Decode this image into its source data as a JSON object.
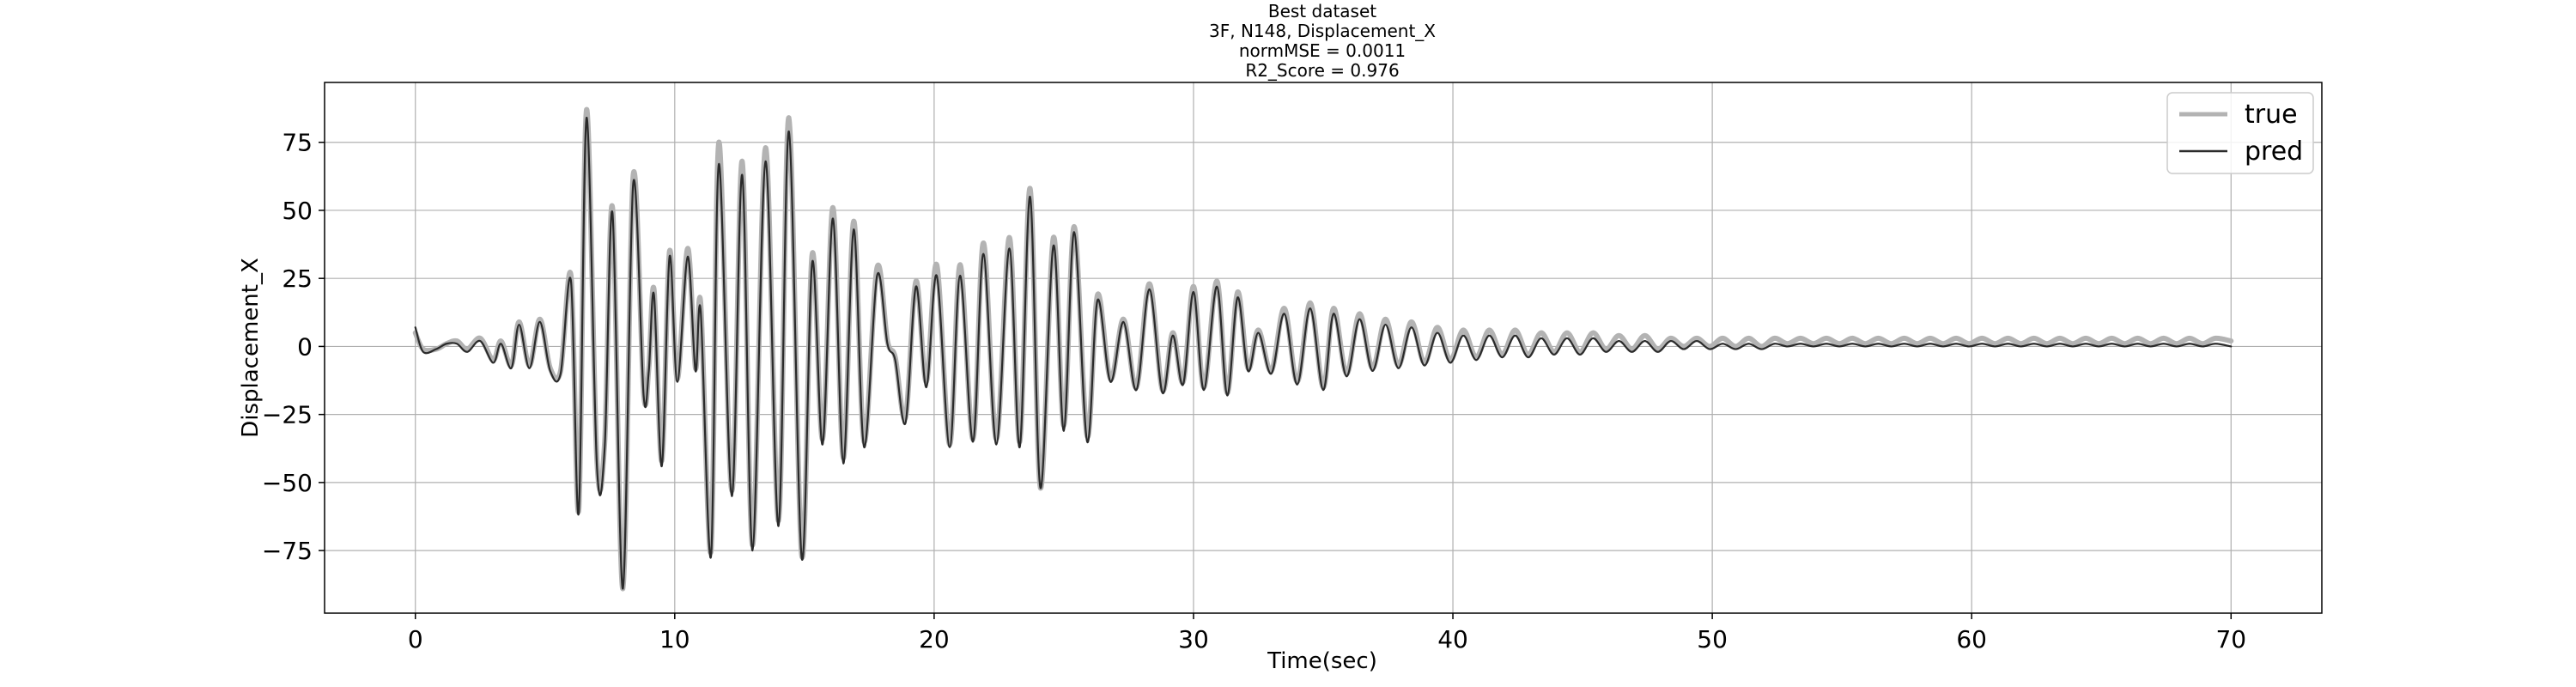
{
  "chart_data": {
    "type": "line",
    "title_lines": [
      "Best dataset",
      "3F, N148, Displacement_X",
      "normMSE = 0.0011",
      "R2_Score = 0.976"
    ],
    "xlabel": "Time(sec)",
    "ylabel": "Displacement_X",
    "xlim": [
      -3.5,
      73.5
    ],
    "ylim": [
      -98,
      97
    ],
    "xticks": [
      0,
      10,
      20,
      30,
      40,
      50,
      60,
      70
    ],
    "yticks": [
      -75,
      -50,
      -25,
      0,
      25,
      50,
      75
    ],
    "grid": true,
    "legend_position": "top-right",
    "series": [
      {
        "name": "true",
        "color": "#b3b3b3",
        "points": [
          [
            0.0,
            5
          ],
          [
            0.3,
            -1
          ],
          [
            0.8,
            -1
          ],
          [
            1.2,
            1
          ],
          [
            1.6,
            2
          ],
          [
            2.0,
            -1
          ],
          [
            2.5,
            3
          ],
          [
            3.0,
            -5
          ],
          [
            3.3,
            2
          ],
          [
            3.7,
            -7
          ],
          [
            4.0,
            9
          ],
          [
            4.4,
            -7
          ],
          [
            4.8,
            10
          ],
          [
            5.2,
            -8
          ],
          [
            5.6,
            -9
          ],
          [
            6.0,
            26
          ],
          [
            6.3,
            -60
          ],
          [
            6.6,
            87
          ],
          [
            7.0,
            -42
          ],
          [
            7.3,
            -35
          ],
          [
            7.6,
            51
          ],
          [
            8.0,
            -89
          ],
          [
            8.4,
            63
          ],
          [
            8.8,
            -17
          ],
          [
            9.0,
            -8
          ],
          [
            9.2,
            21
          ],
          [
            9.5,
            -42
          ],
          [
            9.8,
            35
          ],
          [
            10.1,
            -12
          ],
          [
            10.5,
            36
          ],
          [
            10.8,
            -8
          ],
          [
            11.0,
            16
          ],
          [
            11.4,
            -75
          ],
          [
            11.7,
            75
          ],
          [
            12.2,
            -53
          ],
          [
            12.6,
            68
          ],
          [
            13.0,
            -73
          ],
          [
            13.5,
            73
          ],
          [
            14.0,
            -64
          ],
          [
            14.4,
            84
          ],
          [
            14.9,
            -77
          ],
          [
            15.3,
            34
          ],
          [
            15.7,
            -34
          ],
          [
            16.1,
            51
          ],
          [
            16.5,
            -41
          ],
          [
            16.9,
            46
          ],
          [
            17.3,
            -35
          ],
          [
            17.8,
            29
          ],
          [
            18.2,
            2
          ],
          [
            18.5,
            -4
          ],
          [
            18.9,
            -26
          ],
          [
            19.3,
            24
          ],
          [
            19.7,
            -13
          ],
          [
            20.1,
            30
          ],
          [
            20.6,
            -36
          ],
          [
            21.0,
            30
          ],
          [
            21.5,
            -34
          ],
          [
            21.9,
            38
          ],
          [
            22.4,
            -34
          ],
          [
            22.9,
            40
          ],
          [
            23.3,
            -35
          ],
          [
            23.7,
            58
          ],
          [
            24.1,
            -52
          ],
          [
            24.6,
            40
          ],
          [
            25.0,
            -29
          ],
          [
            25.4,
            44
          ],
          [
            25.9,
            -33
          ],
          [
            26.3,
            19
          ],
          [
            26.8,
            -12
          ],
          [
            27.3,
            10
          ],
          [
            27.8,
            -15
          ],
          [
            28.3,
            23
          ],
          [
            28.8,
            -16
          ],
          [
            29.2,
            5
          ],
          [
            29.6,
            -13
          ],
          [
            30.0,
            22
          ],
          [
            30.4,
            -15
          ],
          [
            30.9,
            24
          ],
          [
            31.3,
            -17
          ],
          [
            31.7,
            20
          ],
          [
            32.1,
            -8
          ],
          [
            32.5,
            6
          ],
          [
            33.0,
            -9
          ],
          [
            33.5,
            14
          ],
          [
            34.0,
            -13
          ],
          [
            34.5,
            16
          ],
          [
            35.0,
            -15
          ],
          [
            35.4,
            14
          ],
          [
            35.9,
            -10
          ],
          [
            36.4,
            12
          ],
          [
            36.9,
            -8
          ],
          [
            37.4,
            10
          ],
          [
            37.9,
            -7
          ],
          [
            38.4,
            9
          ],
          [
            38.9,
            -6
          ],
          [
            39.4,
            7
          ],
          [
            39.9,
            -5
          ],
          [
            40.4,
            6
          ],
          [
            40.9,
            -4
          ],
          [
            41.4,
            6
          ],
          [
            41.9,
            -3
          ],
          [
            42.4,
            6
          ],
          [
            42.9,
            -3
          ],
          [
            43.4,
            5
          ],
          [
            43.9,
            -2
          ],
          [
            44.4,
            5
          ],
          [
            44.9,
            -2
          ],
          [
            45.4,
            5
          ],
          [
            45.9,
            -1
          ],
          [
            46.4,
            4
          ],
          [
            46.9,
            -1
          ],
          [
            47.4,
            4
          ],
          [
            47.9,
            -1
          ],
          [
            48.4,
            3
          ],
          [
            48.9,
            0
          ],
          [
            49.4,
            3
          ],
          [
            49.9,
            0
          ],
          [
            50.4,
            3
          ],
          [
            50.9,
            0
          ],
          [
            51.4,
            3
          ],
          [
            51.9,
            0
          ],
          [
            52.4,
            3
          ],
          [
            52.9,
            1
          ],
          [
            53.4,
            3
          ],
          [
            53.9,
            1
          ],
          [
            54.4,
            3
          ],
          [
            54.9,
            1
          ],
          [
            55.4,
            3
          ],
          [
            55.9,
            1
          ],
          [
            56.4,
            3
          ],
          [
            56.9,
            1
          ],
          [
            57.4,
            3
          ],
          [
            57.9,
            1
          ],
          [
            58.4,
            3
          ],
          [
            58.9,
            1
          ],
          [
            59.4,
            3
          ],
          [
            59.9,
            1
          ],
          [
            60.4,
            3
          ],
          [
            60.9,
            1
          ],
          [
            61.4,
            3
          ],
          [
            61.9,
            1
          ],
          [
            62.4,
            3
          ],
          [
            62.9,
            1
          ],
          [
            63.4,
            3
          ],
          [
            63.9,
            1
          ],
          [
            64.4,
            3
          ],
          [
            64.9,
            1
          ],
          [
            65.4,
            3
          ],
          [
            65.9,
            1
          ],
          [
            66.4,
            3
          ],
          [
            66.9,
            1
          ],
          [
            67.4,
            3
          ],
          [
            67.9,
            1
          ],
          [
            68.4,
            3
          ],
          [
            68.9,
            1
          ],
          [
            69.4,
            3
          ],
          [
            70.0,
            2
          ]
        ]
      },
      {
        "name": "pred",
        "color": "#2b2b2b",
        "points": [
          [
            0.0,
            7
          ],
          [
            0.3,
            -2
          ],
          [
            0.8,
            -1
          ],
          [
            1.2,
            1
          ],
          [
            1.6,
            1
          ],
          [
            2.0,
            -2
          ],
          [
            2.5,
            2
          ],
          [
            3.0,
            -6
          ],
          [
            3.3,
            1
          ],
          [
            3.7,
            -8
          ],
          [
            4.0,
            8
          ],
          [
            4.4,
            -8
          ],
          [
            4.8,
            9
          ],
          [
            5.2,
            -9
          ],
          [
            5.6,
            -10
          ],
          [
            6.0,
            24
          ],
          [
            6.3,
            -61
          ],
          [
            6.6,
            84
          ],
          [
            7.0,
            -44
          ],
          [
            7.3,
            -37
          ],
          [
            7.6,
            49
          ],
          [
            8.0,
            -89
          ],
          [
            8.4,
            60
          ],
          [
            8.8,
            -18
          ],
          [
            9.0,
            -9
          ],
          [
            9.2,
            19
          ],
          [
            9.5,
            -44
          ],
          [
            9.8,
            33
          ],
          [
            10.1,
            -13
          ],
          [
            10.5,
            33
          ],
          [
            10.8,
            -9
          ],
          [
            11.0,
            13
          ],
          [
            11.4,
            -77
          ],
          [
            11.7,
            67
          ],
          [
            12.2,
            -55
          ],
          [
            12.6,
            63
          ],
          [
            13.0,
            -75
          ],
          [
            13.5,
            68
          ],
          [
            14.0,
            -66
          ],
          [
            14.4,
            79
          ],
          [
            14.9,
            -78
          ],
          [
            15.3,
            31
          ],
          [
            15.7,
            -36
          ],
          [
            16.1,
            47
          ],
          [
            16.5,
            -43
          ],
          [
            16.9,
            43
          ],
          [
            17.3,
            -37
          ],
          [
            17.8,
            26
          ],
          [
            18.2,
            1
          ],
          [
            18.5,
            -5
          ],
          [
            18.9,
            -28
          ],
          [
            19.3,
            22
          ],
          [
            19.7,
            -15
          ],
          [
            20.1,
            26
          ],
          [
            20.6,
            -37
          ],
          [
            21.0,
            26
          ],
          [
            21.5,
            -35
          ],
          [
            21.9,
            34
          ],
          [
            22.4,
            -36
          ],
          [
            22.9,
            36
          ],
          [
            23.3,
            -37
          ],
          [
            23.7,
            55
          ],
          [
            24.1,
            -52
          ],
          [
            24.6,
            37
          ],
          [
            25.0,
            -31
          ],
          [
            25.4,
            42
          ],
          [
            25.9,
            -35
          ],
          [
            26.3,
            17
          ],
          [
            26.8,
            -13
          ],
          [
            27.3,
            9
          ],
          [
            27.8,
            -16
          ],
          [
            28.3,
            21
          ],
          [
            28.8,
            -17
          ],
          [
            29.2,
            4
          ],
          [
            29.6,
            -14
          ],
          [
            30.0,
            20
          ],
          [
            30.4,
            -16
          ],
          [
            30.9,
            22
          ],
          [
            31.3,
            -18
          ],
          [
            31.7,
            18
          ],
          [
            32.1,
            -9
          ],
          [
            32.5,
            5
          ],
          [
            33.0,
            -10
          ],
          [
            33.5,
            12
          ],
          [
            34.0,
            -14
          ],
          [
            34.5,
            14
          ],
          [
            35.0,
            -16
          ],
          [
            35.4,
            12
          ],
          [
            35.9,
            -11
          ],
          [
            36.4,
            10
          ],
          [
            36.9,
            -9
          ],
          [
            37.4,
            8
          ],
          [
            37.9,
            -8
          ],
          [
            38.4,
            7
          ],
          [
            38.9,
            -7
          ],
          [
            39.4,
            5
          ],
          [
            39.9,
            -6
          ],
          [
            40.4,
            4
          ],
          [
            40.9,
            -5
          ],
          [
            41.4,
            4
          ],
          [
            41.9,
            -4
          ],
          [
            42.4,
            4
          ],
          [
            42.9,
            -4
          ],
          [
            43.4,
            3
          ],
          [
            43.9,
            -3
          ],
          [
            44.4,
            3
          ],
          [
            44.9,
            -3
          ],
          [
            45.4,
            3
          ],
          [
            45.9,
            -2
          ],
          [
            46.4,
            2
          ],
          [
            46.9,
            -2
          ],
          [
            47.4,
            2
          ],
          [
            47.9,
            -2
          ],
          [
            48.4,
            2
          ],
          [
            48.9,
            -1
          ],
          [
            49.4,
            2
          ],
          [
            49.9,
            -1
          ],
          [
            50.4,
            1
          ],
          [
            50.9,
            -1
          ],
          [
            51.4,
            1
          ],
          [
            51.9,
            -1
          ],
          [
            52.4,
            1
          ],
          [
            52.9,
            0
          ],
          [
            53.4,
            1
          ],
          [
            53.9,
            0
          ],
          [
            54.4,
            1
          ],
          [
            54.9,
            0
          ],
          [
            55.4,
            1
          ],
          [
            55.9,
            0
          ],
          [
            56.4,
            1
          ],
          [
            56.9,
            0
          ],
          [
            57.4,
            1
          ],
          [
            57.9,
            0
          ],
          [
            58.4,
            1
          ],
          [
            58.9,
            0
          ],
          [
            59.4,
            1
          ],
          [
            59.9,
            0
          ],
          [
            60.4,
            1
          ],
          [
            60.9,
            0
          ],
          [
            61.4,
            1
          ],
          [
            61.9,
            0
          ],
          [
            62.4,
            1
          ],
          [
            62.9,
            0
          ],
          [
            63.4,
            1
          ],
          [
            63.9,
            0
          ],
          [
            64.4,
            1
          ],
          [
            64.9,
            0
          ],
          [
            65.4,
            1
          ],
          [
            65.9,
            0
          ],
          [
            66.4,
            1
          ],
          [
            66.9,
            0
          ],
          [
            67.4,
            1
          ],
          [
            67.9,
            0
          ],
          [
            68.4,
            1
          ],
          [
            68.9,
            0
          ],
          [
            69.4,
            1
          ],
          [
            70.0,
            0
          ]
        ]
      }
    ]
  }
}
